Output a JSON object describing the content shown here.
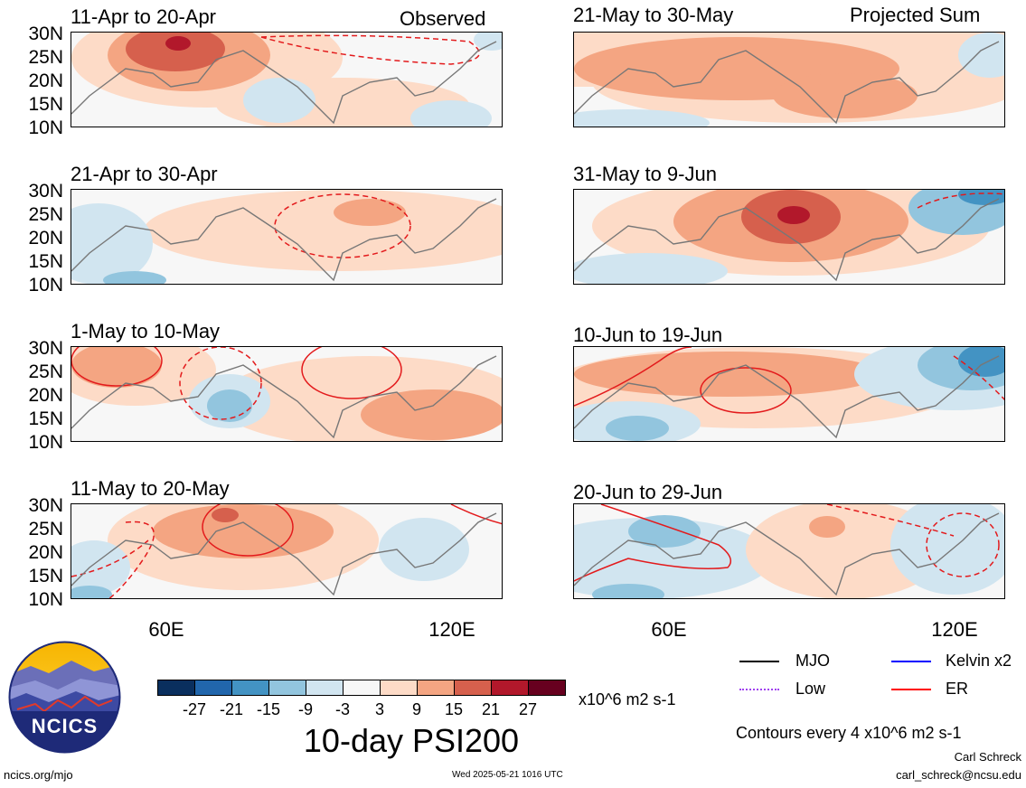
{
  "panels": {
    "left": [
      {
        "date": "11-Apr to 20-Apr",
        "label": "Observed"
      },
      {
        "date": "21-Apr to 30-Apr",
        "label": ""
      },
      {
        "date": "1-May to 10-May",
        "label": ""
      },
      {
        "date": "11-May to 20-May",
        "label": ""
      }
    ],
    "right": [
      {
        "date": "21-May to 30-May",
        "label": "Projected Sum"
      },
      {
        "date": "31-May to 9-Jun",
        "label": ""
      },
      {
        "date": "10-Jun to 19-Jun",
        "label": ""
      },
      {
        "date": "20-Jun to 29-Jun",
        "label": ""
      }
    ]
  },
  "lat_ticks": [
    "30N",
    "25N",
    "20N",
    "15N",
    "10N"
  ],
  "lon_ticks": [
    "60E",
    "120E"
  ],
  "legend": {
    "mjo": "MJO",
    "kelvin": "Kelvin x2",
    "low": "Low",
    "er": "ER",
    "colors": {
      "mjo": "#000000",
      "kelvin": "#0000ff",
      "low": "#a040f0",
      "er": "#ff0000"
    }
  },
  "colorbar": {
    "ticks": [
      "-27",
      "-21",
      "-15",
      "-9",
      "-3",
      "3",
      "9",
      "15",
      "21",
      "27"
    ],
    "units": "x10^6 m2 s-1",
    "colors": [
      "#0a2f5e",
      "#2166ac",
      "#4393c3",
      "#92c5de",
      "#d1e5f0",
      "#f7f7f7",
      "#fddbc7",
      "#f4a582",
      "#d6604d",
      "#b2182b",
      "#67001f"
    ]
  },
  "title": "10-day PSI200",
  "contour_note": "Contours every 4 x10^6 m2 s-1",
  "logo_text": "NCICS",
  "footer": {
    "url": "ncics.org/mjo",
    "timestamp": "Wed 2025-05-21 1016 UTC",
    "author": "Carl Schreck",
    "email": "carl_schreck@ncsu.edu"
  }
}
